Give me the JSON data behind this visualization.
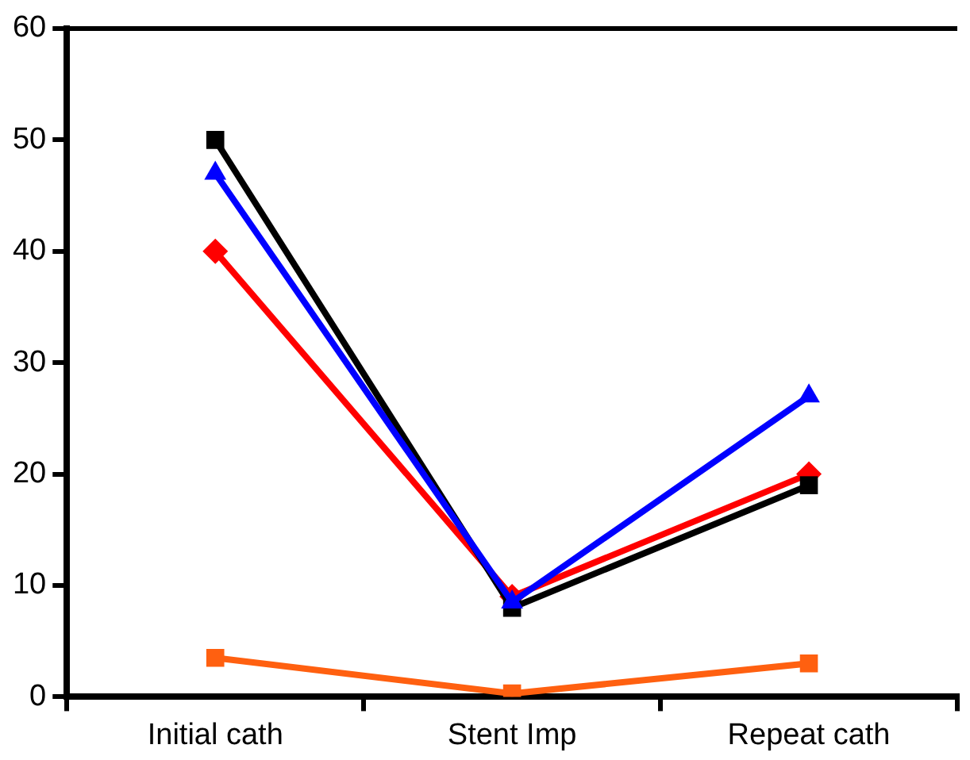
{
  "chart_data": {
    "type": "line",
    "categories": [
      "Initial cath",
      "Stent Imp",
      "Repeat cath"
    ],
    "series": [
      {
        "color": "#0000ff",
        "marker": "triangle",
        "values": [
          47,
          8.5,
          27
        ]
      },
      {
        "color": "#000000",
        "marker": "square",
        "values": [
          50,
          8,
          19
        ]
      },
      {
        "color": "#ff0000",
        "marker": "diamond",
        "values": [
          40,
          9,
          20
        ]
      },
      {
        "color": "#ff6010",
        "marker": "square",
        "values": [
          3.5,
          0.3,
          3
        ]
      }
    ],
    "ylim": [
      0,
      60
    ],
    "yticks": [
      0,
      10,
      20,
      30,
      40,
      50,
      60
    ],
    "grid": false,
    "legend": false,
    "line_style": "solid"
  }
}
